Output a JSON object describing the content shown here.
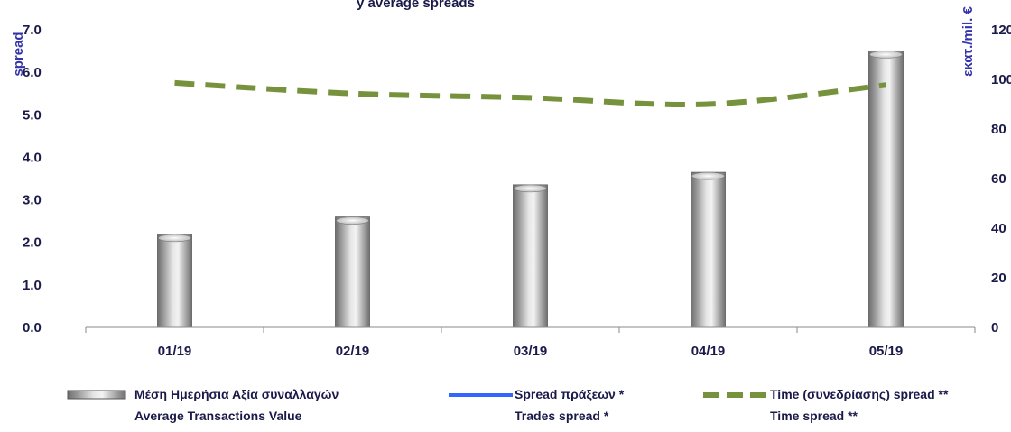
{
  "chart_data": {
    "type": "bar",
    "title": "y average spreads",
    "categories": [
      "01/19",
      "02/19",
      "03/19",
      "04/19",
      "05/19"
    ],
    "y_left": {
      "label": "spread",
      "ylim": [
        0,
        7
      ],
      "ticks": [
        "0.0",
        "1.0",
        "2.0",
        "3.0",
        "4.0",
        "5.0",
        "6.0",
        "7.0"
      ]
    },
    "y_right": {
      "label": "εκατ./mil. €",
      "ylim": [
        0,
        120
      ],
      "ticks": [
        "0",
        "20",
        "40",
        "60",
        "80",
        "100",
        "120"
      ]
    },
    "series": [
      {
        "name": "Μέση Ημερήσια Αξία συναλλαγών / Average Transactions Value",
        "kind": "bar",
        "axis": "right",
        "color": "#9a9a9a",
        "values": [
          37.5,
          44.5,
          57.5,
          62.5,
          111.5
        ]
      },
      {
        "name": "Spread πράξεων * / Trades spread *",
        "kind": "line",
        "axis": "left",
        "color": "#3366ff",
        "values": [
          null,
          null,
          null,
          null,
          null
        ]
      },
      {
        "name": "Time (συνεδρίασης) spread ** / Time spread **",
        "kind": "dashed-line",
        "axis": "left",
        "color": "#76923c",
        "values": [
          5.75,
          5.5,
          5.4,
          5.25,
          5.7
        ]
      }
    ],
    "legend": {
      "position": "bottom",
      "items": [
        {
          "line1": "Μέση Ημερήσια Αξία συναλλαγών",
          "line2": "Average Transactions Value"
        },
        {
          "line1": "Spread πράξεων *",
          "line2": "Trades spread *"
        },
        {
          "line1": "Time  (συνεδρίασης) spread **",
          "line2": "Time spread **"
        }
      ]
    },
    "grid": false
  }
}
